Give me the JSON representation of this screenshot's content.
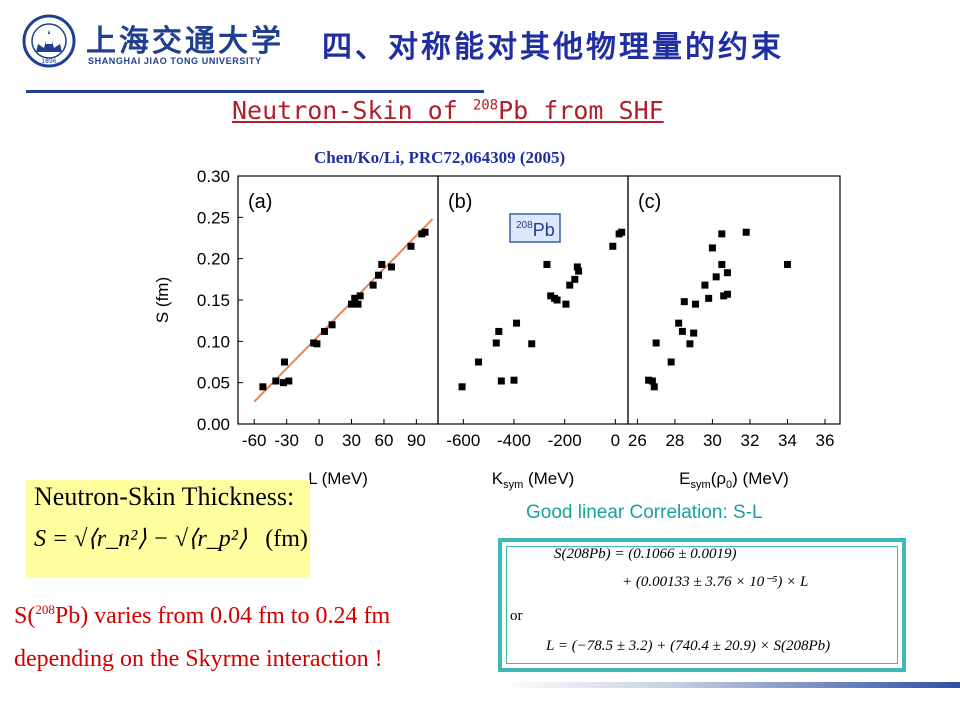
{
  "header": {
    "logo_cn": "上海交通大学",
    "logo_en": "SHANGHAI JIAO TONG UNIVERSITY",
    "logo_year": "1896",
    "title": "四、对称能对其他物理量的约束"
  },
  "subtitle": {
    "pre": "Neutron-Skin of ",
    "sup": "208",
    "post": "Pb from SHF"
  },
  "citation": "Chen/Ko/Li, PRC72,064309 (2005)",
  "chart_data": [
    {
      "type": "scatter",
      "panel_label": "(a)",
      "xlabel": "L (MeV)",
      "ylabel": "S (fm)",
      "xlim": [
        -75,
        110
      ],
      "ylim": [
        0.0,
        0.3
      ],
      "xticks": [
        -60,
        -30,
        0,
        30,
        60,
        90
      ],
      "yticks": [
        0.0,
        0.05,
        0.1,
        0.15,
        0.2,
        0.25,
        0.3
      ],
      "points": [
        [
          -52,
          0.045
        ],
        [
          -40,
          0.052
        ],
        [
          -33,
          0.05
        ],
        [
          -32,
          0.075
        ],
        [
          -28,
          0.052
        ],
        [
          -5,
          0.098
        ],
        [
          -2,
          0.097
        ],
        [
          5,
          0.112
        ],
        [
          12,
          0.12
        ],
        [
          30,
          0.145
        ],
        [
          33,
          0.152
        ],
        [
          36,
          0.145
        ],
        [
          38,
          0.155
        ],
        [
          50,
          0.168
        ],
        [
          55,
          0.18
        ],
        [
          58,
          0.193
        ],
        [
          67,
          0.19
        ],
        [
          85,
          0.215
        ],
        [
          95,
          0.23
        ],
        [
          98,
          0.232
        ]
      ],
      "fit_line": {
        "color": "#e8855a",
        "x": [
          -60,
          105
        ],
        "y": [
          0.027,
          0.248
        ]
      }
    },
    {
      "type": "scatter",
      "panel_label": "(b)",
      "inset_label": "208Pb",
      "xlabel": "Ksym (MeV)",
      "xlim": [
        -700,
        50
      ],
      "ylim": [
        0.0,
        0.3
      ],
      "xticks": [
        -600,
        -400,
        -200,
        0
      ],
      "points": [
        [
          -605,
          0.045
        ],
        [
          -540,
          0.075
        ],
        [
          -470,
          0.098
        ],
        [
          -460,
          0.112
        ],
        [
          -450,
          0.052
        ],
        [
          -400,
          0.053
        ],
        [
          -390,
          0.122
        ],
        [
          -330,
          0.097
        ],
        [
          -270,
          0.193
        ],
        [
          -255,
          0.155
        ],
        [
          -240,
          0.152
        ],
        [
          -230,
          0.15
        ],
        [
          -195,
          0.145
        ],
        [
          -180,
          0.168
        ],
        [
          -160,
          0.175
        ],
        [
          -150,
          0.19
        ],
        [
          -145,
          0.185
        ],
        [
          -10,
          0.215
        ],
        [
          15,
          0.23
        ],
        [
          25,
          0.232
        ]
      ]
    },
    {
      "type": "scatter",
      "panel_label": "(c)",
      "xlabel": "Esym(ρ0) (MeV)",
      "xlim": [
        25.5,
        36.8
      ],
      "ylim": [
        0.0,
        0.3
      ],
      "xticks": [
        26,
        28,
        30,
        32,
        34,
        36
      ],
      "points": [
        [
          26.6,
          0.053
        ],
        [
          26.8,
          0.052
        ],
        [
          26.9,
          0.045
        ],
        [
          27.0,
          0.098
        ],
        [
          27.8,
          0.075
        ],
        [
          28.2,
          0.122
        ],
        [
          28.4,
          0.112
        ],
        [
          28.5,
          0.148
        ],
        [
          28.8,
          0.097
        ],
        [
          29.0,
          0.11
        ],
        [
          29.1,
          0.145
        ],
        [
          29.6,
          0.168
        ],
        [
          29.8,
          0.152
        ],
        [
          30.0,
          0.213
        ],
        [
          30.2,
          0.178
        ],
        [
          30.5,
          0.193
        ],
        [
          30.6,
          0.155
        ],
        [
          30.8,
          0.183
        ],
        [
          31.8,
          0.232
        ],
        [
          30.5,
          0.23
        ],
        [
          34.0,
          0.193
        ],
        [
          30.8,
          0.157
        ]
      ]
    }
  ],
  "skin_box": {
    "title": "Neutron-Skin Thickness:",
    "eq": "S = √⟨r_n²⟩ − √⟨r_p²⟩",
    "eq_unit": "(fm)"
  },
  "varies": {
    "line1_pre": "S(",
    "line1_sup": "208",
    "line1_post": "Pb) varies from 0.04 fm to 0.24 fm",
    "line2": "depending on the Skyrme interaction !"
  },
  "correlation": "Good linear Correlation: S-L",
  "fit": {
    "line1": "S(208Pb) = (0.1066 ± 0.0019)",
    "line2": "+ (0.00133 ± 3.76 × 10⁻⁵) × L",
    "or": "or",
    "line3": "L = (−78.5 ± 3.2) + (740.4 ± 20.9) × S(208Pb)"
  },
  "colors": {
    "title_blue": "#1f2ea0",
    "subtitle_red": "#b0202a",
    "correlation_teal": "#1aa0a0",
    "fit_line_orange": "#e8855a",
    "highlight_yellow": "#ffffa0"
  }
}
